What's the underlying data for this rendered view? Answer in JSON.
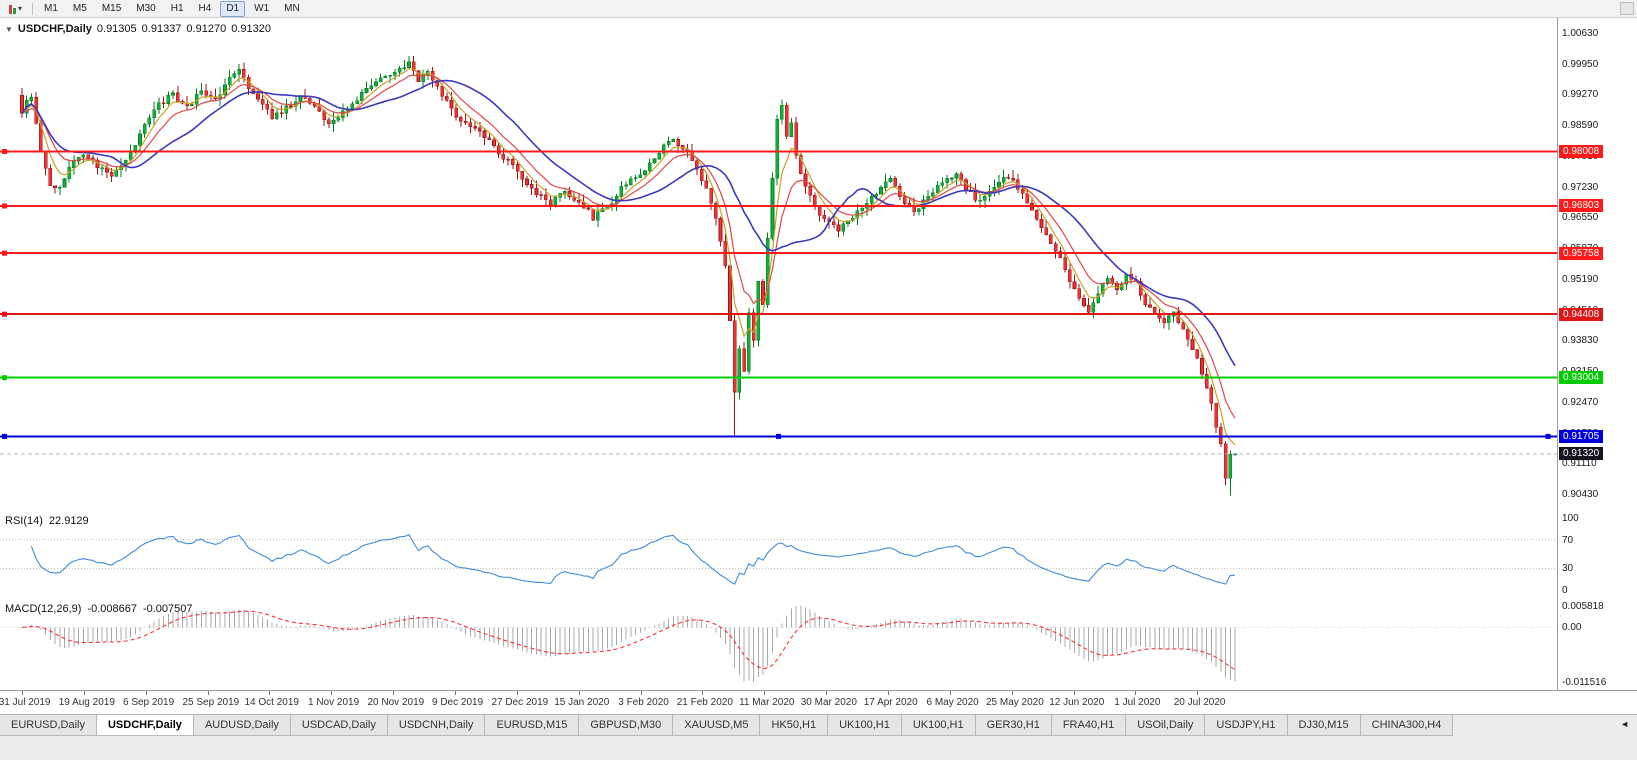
{
  "toolbar": {
    "timeframes": [
      {
        "label": "M1",
        "active": false
      },
      {
        "label": "M5",
        "active": false
      },
      {
        "label": "M15",
        "active": false
      },
      {
        "label": "M30",
        "active": false
      },
      {
        "label": "H1",
        "active": false
      },
      {
        "label": "H4",
        "active": false
      },
      {
        "label": "D1",
        "active": true
      },
      {
        "label": "W1",
        "active": false
      },
      {
        "label": "MN",
        "active": false
      }
    ]
  },
  "icons": {
    "collapse": "▼",
    "caret": "▾",
    "tab_scroll_left": "◄"
  },
  "price_panel": {
    "header": {
      "symbol": "USDCHF,Daily",
      "open": "0.91305",
      "high": "0.91337",
      "low": "0.91270",
      "close": "0.91320"
    },
    "axis_labels": [
      "1.00630",
      "0.99950",
      "0.99270",
      "0.98590",
      "0.97910",
      "0.97230",
      "0.96550",
      "0.95870",
      "0.95190",
      "0.94510",
      "0.93830",
      "0.93150",
      "0.92470",
      "0.91790",
      "0.91110",
      "0.90430"
    ],
    "hlines": [
      {
        "price": 0.98008,
        "label": "0.98008",
        "color": "#ff1a1a",
        "width": 2,
        "selected": false
      },
      {
        "price": 0.96803,
        "label": "0.96803",
        "color": "#ff1a1a",
        "width": 2,
        "selected": false
      },
      {
        "price": 0.95758,
        "label": "0.95758",
        "color": "#ff1a1a",
        "width": 2,
        "selected": false
      },
      {
        "price": 0.94408,
        "label": "0.94408",
        "color": "#e01616",
        "width": 2,
        "selected": false
      },
      {
        "price": 0.93004,
        "label": "0.93004",
        "color": "#00cc00",
        "width": 2,
        "selected": false
      },
      {
        "price": 0.91705,
        "label": "0.91705",
        "color": "#0000dd",
        "width": 2,
        "selected": true
      }
    ],
    "current_price": {
      "price": 0.9132,
      "label": "0.91320",
      "color": "#15151f"
    }
  },
  "rsi_panel": {
    "title": "RSI(14)",
    "value": "22.9129",
    "axis_labels": [
      "100",
      "70",
      "30",
      "0"
    ],
    "axis_values": [
      100,
      70,
      30,
      0
    ],
    "levels": [
      70,
      30
    ]
  },
  "macd_panel": {
    "title": "MACD(12,26,9)",
    "value_main": "-0.008667",
    "value_signal": "-0.007507",
    "axis_labels": [
      "0.005818",
      "0.00",
      "-0.011516"
    ]
  },
  "date_axis": [
    "31 Jul 2019",
    "19 Aug 2019",
    "6 Sep 2019",
    "25 Sep 2019",
    "14 Oct 2019",
    "1 Nov 2019",
    "20 Nov 2019",
    "9 Dec 2019",
    "27 Dec 2019",
    "15 Jan 2020",
    "3 Feb 2020",
    "21 Feb 2020",
    "11 Mar 2020",
    "30 Mar 2020",
    "17 Apr 2020",
    "6 May 2020",
    "25 May 2020",
    "12 Jun 2020",
    "1 Jul 2020",
    "20 Jul 2020"
  ],
  "tabs": [
    {
      "label": "EURUSD,Daily",
      "active": false
    },
    {
      "label": "USDCHF,Daily",
      "active": true
    },
    {
      "label": "AUDUSD,Daily",
      "active": false
    },
    {
      "label": "USDCAD,Daily",
      "active": false
    },
    {
      "label": "USDCNH,Daily",
      "active": false
    },
    {
      "label": "EURUSD,M15",
      "active": false
    },
    {
      "label": "GBPUSD,M30",
      "active": false
    },
    {
      "label": "XAUUSD,M5",
      "active": false
    },
    {
      "label": "HK50,H1",
      "active": false
    },
    {
      "label": "UK100,H1",
      "active": false
    },
    {
      "label": "UK100,H1",
      "active": false
    },
    {
      "label": "GER30,H1",
      "active": false
    },
    {
      "label": "FRA40,H1",
      "active": false
    },
    {
      "label": "USOil,Daily",
      "active": false
    },
    {
      "label": "USDJPY,H1",
      "active": false
    },
    {
      "label": "DJ30,M15",
      "active": false
    },
    {
      "label": "CHINA300,H4",
      "active": false
    }
  ],
  "chart_data": {
    "type": "candlestick",
    "symbol": "USDCHF",
    "timeframe": "Daily",
    "title": "USDCHF,Daily",
    "last_ohlc": {
      "open": 0.91305,
      "high": 0.91337,
      "low": 0.9127,
      "close": 0.9132
    },
    "num_candles": 258,
    "close_anchors": [
      [
        0,
        0.989
      ],
      [
        2,
        0.9925
      ],
      [
        4,
        0.9795
      ],
      [
        6,
        0.973
      ],
      [
        8,
        0.9715
      ],
      [
        10,
        0.976
      ],
      [
        13,
        0.98
      ],
      [
        16,
        0.977
      ],
      [
        19,
        0.9748
      ],
      [
        22,
        0.9778
      ],
      [
        26,
        0.9858
      ],
      [
        29,
        0.9905
      ],
      [
        32,
        0.9928
      ],
      [
        35,
        0.9898
      ],
      [
        38,
        0.9935
      ],
      [
        41,
        0.9918
      ],
      [
        44,
        0.996
      ],
      [
        46,
        0.9985
      ],
      [
        48,
        0.9945
      ],
      [
        51,
        0.99
      ],
      [
        53,
        0.9878
      ],
      [
        56,
        0.9898
      ],
      [
        59,
        0.9925
      ],
      [
        62,
        0.9898
      ],
      [
        65,
        0.9862
      ],
      [
        68,
        0.9888
      ],
      [
        71,
        0.9915
      ],
      [
        74,
        0.9945
      ],
      [
        77,
        0.9968
      ],
      [
        80,
        0.9988
      ],
      [
        82,
        0.9996
      ],
      [
        84,
        0.996
      ],
      [
        86,
        0.9982
      ],
      [
        88,
        0.994
      ],
      [
        91,
        0.9895
      ],
      [
        94,
        0.9862
      ],
      [
        97,
        0.984
      ],
      [
        100,
        0.9812
      ],
      [
        103,
        0.9778
      ],
      [
        106,
        0.9742
      ],
      [
        109,
        0.9705
      ],
      [
        112,
        0.9688
      ],
      [
        115,
        0.9712
      ],
      [
        118,
        0.9692
      ],
      [
        121,
        0.9655
      ],
      [
        124,
        0.9678
      ],
      [
        127,
        0.9718
      ],
      [
        130,
        0.9742
      ],
      [
        133,
        0.9772
      ],
      [
        136,
        0.9812
      ],
      [
        138,
        0.9832
      ],
      [
        141,
        0.9795
      ],
      [
        143,
        0.9758
      ],
      [
        145,
        0.9718
      ],
      [
        147,
        0.9655
      ],
      [
        149,
        0.9545
      ],
      [
        150,
        0.943
      ],
      [
        151,
        0.9268
      ],
      [
        152,
        0.9368
      ],
      [
        153,
        0.9312
      ],
      [
        154,
        0.9438
      ],
      [
        155,
        0.939
      ],
      [
        156,
        0.9512
      ],
      [
        157,
        0.9468
      ],
      [
        158,
        0.9608
      ],
      [
        159,
        0.9735
      ],
      [
        160,
        0.9865
      ],
      [
        161,
        0.9902
      ],
      [
        162,
        0.9828
      ],
      [
        163,
        0.9868
      ],
      [
        164,
        0.9788
      ],
      [
        166,
        0.9728
      ],
      [
        168,
        0.968
      ],
      [
        170,
        0.9652
      ],
      [
        173,
        0.9622
      ],
      [
        176,
        0.9658
      ],
      [
        179,
        0.9692
      ],
      [
        182,
        0.9718
      ],
      [
        184,
        0.9742
      ],
      [
        186,
        0.9702
      ],
      [
        189,
        0.9668
      ],
      [
        192,
        0.9705
      ],
      [
        195,
        0.9732
      ],
      [
        198,
        0.9752
      ],
      [
        200,
        0.9718
      ],
      [
        203,
        0.9688
      ],
      [
        206,
        0.9722
      ],
      [
        209,
        0.9748
      ],
      [
        212,
        0.9712
      ],
      [
        214,
        0.9672
      ],
      [
        216,
        0.9635
      ],
      [
        218,
        0.9602
      ],
      [
        220,
        0.9562
      ],
      [
        222,
        0.9512
      ],
      [
        224,
        0.9472
      ],
      [
        226,
        0.9442
      ],
      [
        228,
        0.9482
      ],
      [
        230,
        0.9522
      ],
      [
        232,
        0.9495
      ],
      [
        234,
        0.9532
      ],
      [
        236,
        0.9508
      ],
      [
        238,
        0.9468
      ],
      [
        240,
        0.9448
      ],
      [
        242,
        0.9418
      ],
      [
        244,
        0.9442
      ],
      [
        246,
        0.9405
      ],
      [
        248,
        0.9362
      ],
      [
        250,
        0.9312
      ],
      [
        252,
        0.9242
      ],
      [
        253,
        0.9195
      ],
      [
        254,
        0.915
      ],
      [
        255,
        0.9085
      ],
      [
        256,
        0.9128
      ],
      [
        257,
        0.9132
      ]
    ],
    "extremes": {
      "crash_low_index": 151,
      "crash_low": 0.91705,
      "peak_index": 82,
      "peak_high": 1.0012,
      "final_low_index": 256,
      "final_low": 0.904
    },
    "horizontal_levels": [
      0.98008,
      0.96803,
      0.95758,
      0.94408,
      0.93004,
      0.91705
    ],
    "moving_averages": [
      {
        "period": 5,
        "method": "ema",
        "color": "#c9a227"
      },
      {
        "period": 10,
        "method": "ema",
        "color": "#e04848"
      },
      {
        "period": 20,
        "method": "sma",
        "color": "#3a3ac0"
      }
    ],
    "indicators": {
      "rsi": {
        "period": 14,
        "current": 22.9129,
        "ylim": [
          0,
          100
        ]
      },
      "macd": {
        "fast": 12,
        "slow": 26,
        "signal": 9,
        "current_main": -0.008667,
        "current_signal": -0.007507
      }
    },
    "colors": {
      "up": "#10b038",
      "up_dark": "#067f24",
      "down": "#ef3333",
      "down_dark": "#9d1515",
      "ma_fast": "#c9a227",
      "ma_mid": "#e04848",
      "ma_slow": "#3a3ac0",
      "rsi": "#3f8ede",
      "macd_hist": "#a8a8a8",
      "macd_signal": "#ff3030",
      "current_badge": "#15151f"
    }
  }
}
